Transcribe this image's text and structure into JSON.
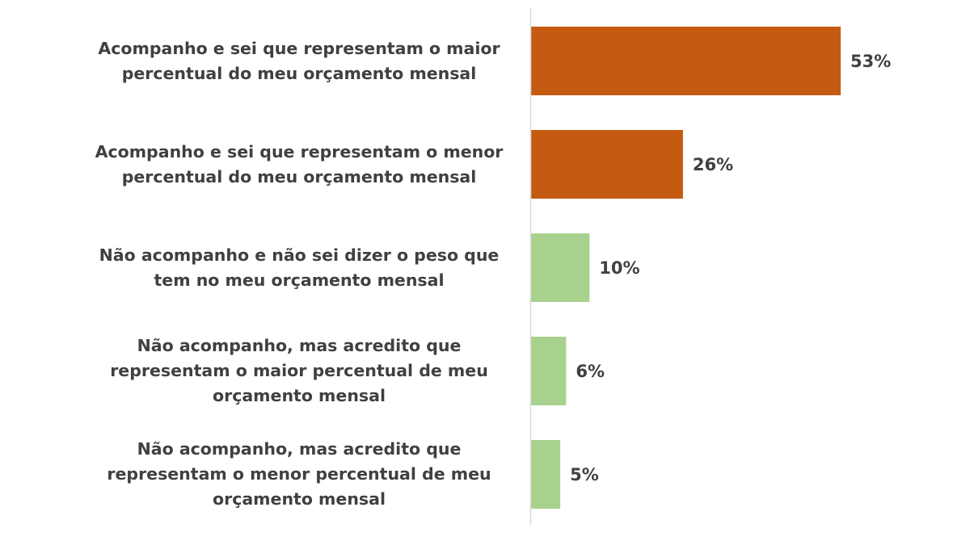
{
  "chart_data": {
    "type": "bar",
    "orientation": "horizontal",
    "title": "",
    "xlabel": "",
    "ylabel": "",
    "xlim": [
      0,
      53
    ],
    "grid": false,
    "legend": "none",
    "categories": [
      "Acompanho e sei que representam o maior percentual do meu orçamento mensal",
      "Acompanho e sei que representam o menor percentual do meu orçamento mensal",
      "Não acompanho e não sei dizer o peso que tem no meu orçamento mensal",
      "Não acompanho, mas acredito que representam o maior percentual de meu orçamento mensal",
      "Não acompanho, mas acredito que representam o menor percentual de meu orçamento mensal"
    ],
    "values": [
      53,
      26,
      10,
      6,
      5
    ],
    "data_labels": [
      "53%",
      "26%",
      "10%",
      "6%",
      "5%"
    ],
    "bar_colors": [
      "#C55A11",
      "#C55A11",
      "#A9D18E",
      "#A9D18E",
      "#A9D18E"
    ],
    "axis_color": "#D9D9D9"
  }
}
